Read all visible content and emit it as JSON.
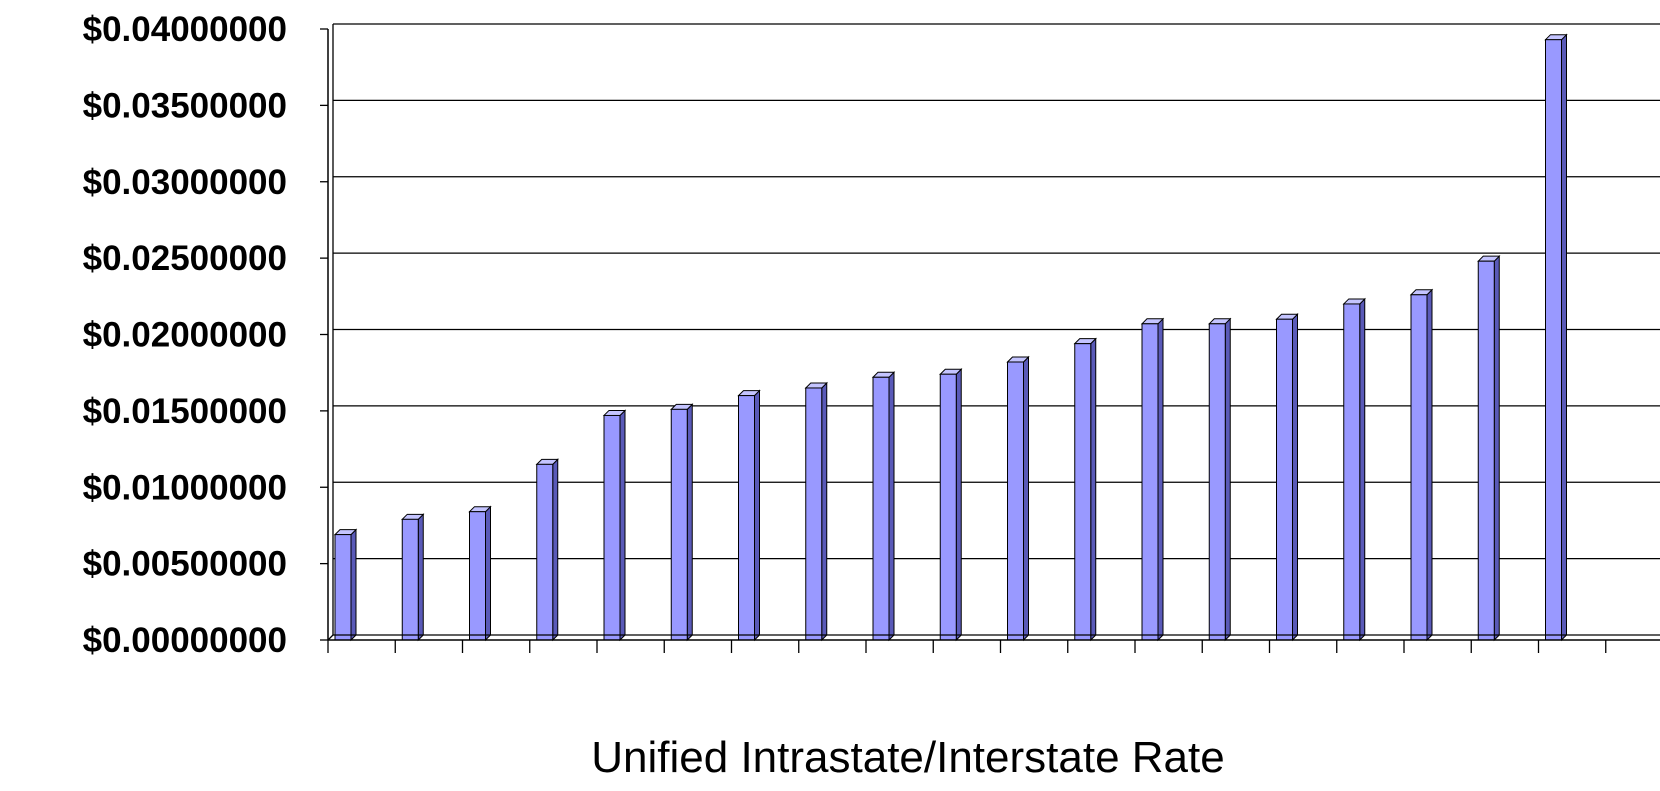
{
  "chart_data": {
    "type": "bar",
    "title": "",
    "xlabel": "Unified Intrastate/Interstate Rate",
    "ylabel": "",
    "ylim": [
      0,
      0.04
    ],
    "yticks": [
      "$0.00000000",
      "$0.00500000",
      "$0.01000000",
      "$0.01500000",
      "$0.02000000",
      "$0.02500000",
      "$0.03000000",
      "$0.03500000",
      "$0.04000000"
    ],
    "grid": true,
    "legend": "none",
    "bar_color": "#9999ff",
    "bar_side_color": "#5a5ab8",
    "bar_top_color": "#c4c4ff",
    "categories": [
      "",
      "",
      "",
      "",
      "",
      "",
      "",
      "",
      "",
      "",
      "",
      "",
      "",
      "",
      "",
      "",
      "",
      "",
      "",
      ""
    ],
    "values": [
      0.0069,
      0.0079,
      0.0084,
      0.0115,
      0.0147,
      0.0151,
      0.016,
      0.0165,
      0.0172,
      0.0174,
      0.0182,
      0.0194,
      0.0207,
      0.0207,
      0.021,
      0.022,
      0.0226,
      0.0248,
      0.0393,
      null
    ]
  }
}
